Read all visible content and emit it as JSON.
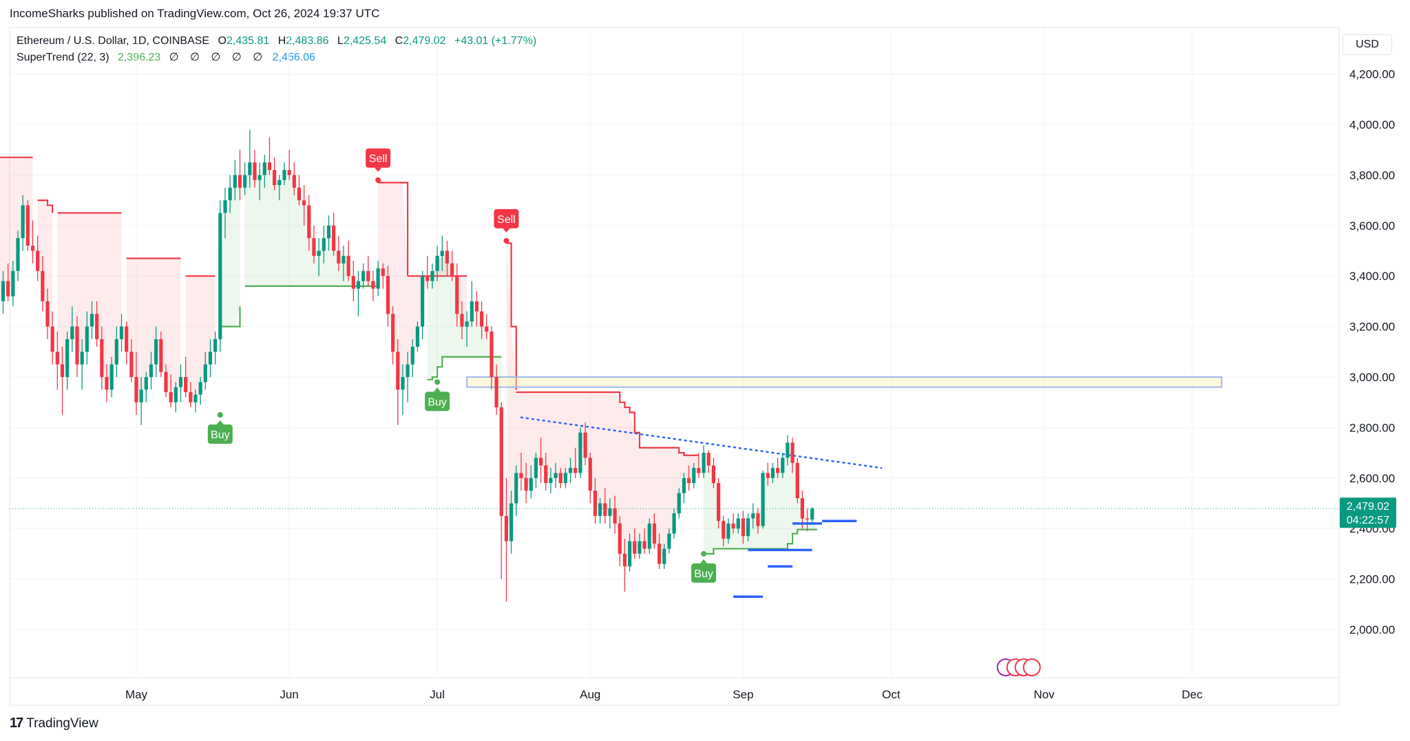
{
  "header": {
    "published": "IncomeSharks published on TradingView.com, Oct 26, 2024 19:37 UTC"
  },
  "legend": {
    "symbol": "Ethereum / U.S. Dollar, 1D, COINBASE",
    "o_label": "O",
    "o": "2,435.81",
    "h_label": "H",
    "h": "2,483.86",
    "l_label": "L",
    "l": "2,425.54",
    "c_label": "C",
    "c": "2,479.02",
    "change": "+43.01 (+1.77%)",
    "indicator": "SuperTrend (22, 3)",
    "indicator_v1": "2,396.23",
    "indicator_zeros": "∅ ∅ ∅ ∅ ∅",
    "indicator_v2": "2,456.06"
  },
  "currency": "USD",
  "price_label": {
    "price": "2,479.02",
    "countdown": "04:22:57"
  },
  "footer": {
    "brand": "TradingView"
  },
  "colors": {
    "bull": "#089981",
    "bear": "#f23645",
    "st_up": "#4caf50",
    "st_down": "#f23645",
    "hline": "#2962ff"
  },
  "chart_data": {
    "type": "candlestick",
    "ylim": [
      1900,
      4300
    ],
    "y_ticks": [
      2000,
      2200,
      2400,
      2600,
      2800,
      3000,
      3200,
      3400,
      3600,
      3800,
      4000,
      4200
    ],
    "y_tick_labels": [
      "2,000.00",
      "2,200.00",
      "2,400.00",
      "2,600.00",
      "2,800.00",
      "3,000.00",
      "3,200.00",
      "3,400.00",
      "3,600.00",
      "3,800.00",
      "4,000.00",
      "4,200.00"
    ],
    "x_ticks": [
      {
        "label": "May",
        "date": "2024-05-01"
      },
      {
        "label": "Jun",
        "date": "2024-06-01"
      },
      {
        "label": "Jul",
        "date": "2024-07-01"
      },
      {
        "label": "Aug",
        "date": "2024-08-01"
      },
      {
        "label": "Sep",
        "date": "2024-09-01"
      },
      {
        "label": "Oct",
        "date": "2024-10-01"
      },
      {
        "label": "Nov",
        "date": "2024-11-01"
      },
      {
        "label": "Dec",
        "date": "2024-12-01"
      }
    ],
    "start_date": "2024-04-02",
    "ohlc": [
      [
        3200,
        3340,
        3150,
        3250
      ],
      [
        3250,
        3400,
        3200,
        3300
      ],
      [
        3300,
        3420,
        3250,
        3380
      ],
      [
        3380,
        3450,
        3300,
        3320
      ],
      [
        3320,
        3460,
        3280,
        3420
      ],
      [
        3420,
        3580,
        3380,
        3550
      ],
      [
        3550,
        3720,
        3500,
        3680
      ],
      [
        3680,
        3700,
        3500,
        3520
      ],
      [
        3520,
        3620,
        3450,
        3500
      ],
      [
        3500,
        3560,
        3380,
        3420
      ],
      [
        3420,
        3480,
        3260,
        3300
      ],
      [
        3300,
        3350,
        3150,
        3200
      ],
      [
        3200,
        3260,
        3050,
        3100
      ],
      [
        3100,
        3180,
        2950,
        3050
      ],
      [
        3050,
        3120,
        2850,
        3000
      ],
      [
        3000,
        3180,
        2950,
        3150
      ],
      [
        3150,
        3280,
        3100,
        3200
      ],
      [
        3200,
        3240,
        3000,
        3050
      ],
      [
        3050,
        3150,
        2950,
        3100
      ],
      [
        3100,
        3260,
        3050,
        3200
      ],
      [
        3200,
        3300,
        3150,
        3250
      ],
      [
        3250,
        3300,
        3120,
        3150
      ],
      [
        3150,
        3200,
        2950,
        3000
      ],
      [
        3000,
        3050,
        2900,
        2950
      ],
      [
        2950,
        3080,
        2920,
        3050
      ],
      [
        3050,
        3200,
        3000,
        3150
      ],
      [
        3150,
        3250,
        3100,
        3200
      ],
      [
        3200,
        3220,
        3050,
        3100
      ],
      [
        3100,
        3150,
        2980,
        3000
      ],
      [
        3000,
        3100,
        2850,
        2900
      ],
      [
        2900,
        3000,
        2810,
        2950
      ],
      [
        2950,
        3020,
        2900,
        3000
      ],
      [
        3000,
        3100,
        2950,
        3050
      ],
      [
        3050,
        3200,
        3000,
        3150
      ],
      [
        3150,
        3180,
        3000,
        3020
      ],
      [
        3020,
        3050,
        2920,
        2940
      ],
      [
        2940,
        3010,
        2880,
        2900
      ],
      [
        2900,
        2980,
        2860,
        2960
      ],
      [
        2960,
        3050,
        2900,
        3000
      ],
      [
        3000,
        3080,
        2920,
        2940
      ],
      [
        2940,
        2980,
        2880,
        2900
      ],
      [
        2900,
        2950,
        2860,
        2930
      ],
      [
        2930,
        3000,
        2890,
        2980
      ],
      [
        2980,
        3100,
        2950,
        3050
      ],
      [
        3050,
        3150,
        3000,
        3100
      ],
      [
        3100,
        3180,
        3050,
        3150
      ],
      [
        3150,
        3700,
        3100,
        3650
      ],
      [
        3650,
        3750,
        3550,
        3700
      ],
      [
        3700,
        3800,
        3650,
        3750
      ],
      [
        3750,
        3860,
        3700,
        3800
      ],
      [
        3800,
        3900,
        3700,
        3750
      ],
      [
        3750,
        3850,
        3720,
        3800
      ],
      [
        3800,
        3980,
        3750,
        3850
      ],
      [
        3850,
        3900,
        3750,
        3780
      ],
      [
        3780,
        3850,
        3700,
        3800
      ],
      [
        3800,
        3880,
        3750,
        3850
      ],
      [
        3850,
        3950,
        3800,
        3820
      ],
      [
        3820,
        3870,
        3740,
        3760
      ],
      [
        3760,
        3800,
        3700,
        3780
      ],
      [
        3780,
        3850,
        3760,
        3820
      ],
      [
        3820,
        3900,
        3780,
        3800
      ],
      [
        3800,
        3850,
        3720,
        3750
      ],
      [
        3750,
        3800,
        3680,
        3700
      ],
      [
        3700,
        3760,
        3600,
        3680
      ],
      [
        3680,
        3720,
        3500,
        3550
      ],
      [
        3550,
        3600,
        3450,
        3480
      ],
      [
        3480,
        3550,
        3400,
        3500
      ],
      [
        3500,
        3600,
        3450,
        3550
      ],
      [
        3550,
        3640,
        3500,
        3600
      ],
      [
        3600,
        3650,
        3480,
        3500
      ],
      [
        3500,
        3560,
        3420,
        3450
      ],
      [
        3450,
        3520,
        3380,
        3480
      ],
      [
        3480,
        3540,
        3380,
        3400
      ],
      [
        3400,
        3460,
        3300,
        3350
      ],
      [
        3350,
        3420,
        3240,
        3380
      ],
      [
        3380,
        3450,
        3350,
        3420
      ],
      [
        3420,
        3480,
        3360,
        3380
      ],
      [
        3380,
        3420,
        3300,
        3350
      ],
      [
        3350,
        3460,
        3320,
        3430
      ],
      [
        3430,
        3450,
        3350,
        3400
      ],
      [
        3400,
        3440,
        3200,
        3250
      ],
      [
        3250,
        3280,
        3050,
        3100
      ],
      [
        3100,
        3150,
        2810,
        2950
      ],
      [
        2950,
        3050,
        2850,
        3000
      ],
      [
        3000,
        3100,
        2900,
        3050
      ],
      [
        3050,
        3150,
        3000,
        3120
      ],
      [
        3120,
        3220,
        3100,
        3200
      ],
      [
        3200,
        3420,
        3150,
        3400
      ],
      [
        3400,
        3480,
        3350,
        3380
      ],
      [
        3380,
        3450,
        3350,
        3420
      ],
      [
        3420,
        3520,
        3380,
        3480
      ],
      [
        3480,
        3560,
        3420,
        3500
      ],
      [
        3500,
        3540,
        3400,
        3450
      ],
      [
        3450,
        3500,
        3380,
        3400
      ],
      [
        3400,
        3450,
        3200,
        3250
      ],
      [
        3250,
        3300,
        3150,
        3200
      ],
      [
        3200,
        3260,
        3120,
        3220
      ],
      [
        3220,
        3380,
        3200,
        3300
      ],
      [
        3300,
        3340,
        3200,
        3260
      ],
      [
        3260,
        3300,
        3150,
        3200
      ],
      [
        3200,
        3250,
        3150,
        3180
      ],
      [
        3180,
        3200,
        2950,
        3000
      ],
      [
        3000,
        3050,
        2850,
        2880
      ],
      [
        2880,
        2900,
        2200,
        2450
      ],
      [
        2450,
        2600,
        2110,
        2350
      ],
      [
        2350,
        2550,
        2300,
        2500
      ],
      [
        2500,
        2650,
        2450,
        2620
      ],
      [
        2620,
        2700,
        2550,
        2600
      ],
      [
        2600,
        2660,
        2500,
        2550
      ],
      [
        2550,
        2650,
        2520,
        2600
      ],
      [
        2600,
        2700,
        2560,
        2680
      ],
      [
        2680,
        2760,
        2580,
        2650
      ],
      [
        2650,
        2700,
        2550,
        2580
      ],
      [
        2580,
        2640,
        2540,
        2600
      ],
      [
        2600,
        2660,
        2560,
        2620
      ],
      [
        2620,
        2640,
        2560,
        2580
      ],
      [
        2580,
        2640,
        2560,
        2620
      ],
      [
        2620,
        2680,
        2580,
        2640
      ],
      [
        2640,
        2720,
        2600,
        2620
      ],
      [
        2620,
        2800,
        2600,
        2780
      ],
      [
        2780,
        2820,
        2650,
        2680
      ],
      [
        2680,
        2700,
        2500,
        2550
      ],
      [
        2550,
        2600,
        2420,
        2450
      ],
      [
        2450,
        2520,
        2420,
        2500
      ],
      [
        2500,
        2560,
        2420,
        2450
      ],
      [
        2450,
        2520,
        2400,
        2480
      ],
      [
        2480,
        2530,
        2380,
        2420
      ],
      [
        2420,
        2450,
        2250,
        2300
      ],
      [
        2300,
        2360,
        2150,
        2250
      ],
      [
        2250,
        2380,
        2230,
        2350
      ],
      [
        2350,
        2400,
        2280,
        2300
      ],
      [
        2300,
        2380,
        2280,
        2350
      ],
      [
        2350,
        2400,
        2300,
        2320
      ],
      [
        2320,
        2440,
        2300,
        2420
      ],
      [
        2420,
        2460,
        2320,
        2340
      ],
      [
        2340,
        2380,
        2240,
        2260
      ],
      [
        2260,
        2340,
        2240,
        2320
      ],
      [
        2320,
        2400,
        2300,
        2380
      ],
      [
        2380,
        2480,
        2360,
        2460
      ],
      [
        2460,
        2560,
        2440,
        2540
      ],
      [
        2540,
        2620,
        2500,
        2600
      ],
      [
        2600,
        2650,
        2550,
        2580
      ],
      [
        2580,
        2660,
        2560,
        2640
      ],
      [
        2640,
        2700,
        2600,
        2620
      ],
      [
        2620,
        2730,
        2600,
        2700
      ],
      [
        2700,
        2710,
        2620,
        2650
      ],
      [
        2650,
        2680,
        2560,
        2580
      ],
      [
        2580,
        2600,
        2400,
        2430
      ],
      [
        2430,
        2450,
        2330,
        2360
      ],
      [
        2360,
        2440,
        2340,
        2420
      ],
      [
        2420,
        2460,
        2380,
        2400
      ],
      [
        2400,
        2460,
        2380,
        2440
      ],
      [
        2440,
        2470,
        2340,
        2370
      ],
      [
        2370,
        2460,
        2350,
        2440
      ],
      [
        2440,
        2500,
        2400,
        2460
      ],
      [
        2460,
        2480,
        2380,
        2410
      ],
      [
        2410,
        2630,
        2400,
        2620
      ],
      [
        2620,
        2660,
        2570,
        2600
      ],
      [
        2600,
        2660,
        2580,
        2640
      ],
      [
        2640,
        2680,
        2600,
        2620
      ],
      [
        2620,
        2700,
        2600,
        2680
      ],
      [
        2680,
        2770,
        2650,
        2740
      ],
      [
        2740,
        2760,
        2620,
        2660
      ],
      [
        2660,
        2680,
        2500,
        2520
      ],
      [
        2520,
        2550,
        2400,
        2440
      ],
      [
        2440,
        2480,
        2390,
        2436
      ],
      [
        2435.81,
        2483.86,
        2425.54,
        2479.02
      ]
    ],
    "supertrend": [
      {
        "from": 0,
        "to": 8,
        "dir": "down",
        "values": [
          3870,
          3870,
          3870,
          3870,
          3870,
          3870,
          3870,
          3870,
          3870
        ]
      },
      {
        "from": 9,
        "to": 12,
        "dir": "down",
        "values": [
          3700,
          3700,
          3680,
          3650
        ]
      },
      {
        "from": 13,
        "to": 26,
        "dir": "down",
        "values": [
          3650,
          3650,
          3650,
          3650,
          3650,
          3650,
          3650,
          3650,
          3650,
          3650,
          3650,
          3650,
          3650,
          3650
        ]
      },
      {
        "from": 27,
        "to": 38,
        "dir": "down",
        "values": [
          3470,
          3470,
          3470,
          3470,
          3470,
          3470,
          3470,
          3470,
          3470,
          3470,
          3470,
          3470
        ]
      },
      {
        "from": 39,
        "to": 45,
        "dir": "down",
        "values": [
          3400,
          3400,
          3400,
          3400,
          3400,
          3400,
          3400
        ]
      },
      {
        "from": 46,
        "to": 50,
        "dir": "up",
        "values": [
          3200,
          3200,
          3200,
          3200,
          3280
        ]
      },
      {
        "from": 51,
        "to": 78,
        "dir": "up",
        "values": [
          3360,
          3360,
          3360,
          3360,
          3360,
          3360,
          3360,
          3360,
          3360,
          3360,
          3360,
          3360,
          3360,
          3360,
          3360,
          3360,
          3360,
          3360,
          3360,
          3360,
          3360,
          3360,
          3360,
          3360,
          3360,
          3360,
          3360,
          3360
        ]
      },
      {
        "from": 78,
        "to": 84,
        "dir": "down",
        "values": [
          3770,
          3770,
          3770,
          3770,
          3770,
          3770,
          3400
        ]
      },
      {
        "from": 84,
        "to": 96,
        "dir": "down",
        "values": [
          3400,
          3400,
          3400,
          3400,
          3400,
          3400,
          3400,
          3400,
          3400,
          3400,
          3400,
          3400,
          3400
        ]
      },
      {
        "from": 88,
        "to": 103,
        "dir": "up",
        "values": [
          2990,
          3000,
          3040,
          3080,
          3080,
          3080,
          3080,
          3080,
          3080,
          3080,
          3080,
          3080,
          3080,
          3080,
          3080,
          3080
        ]
      },
      {
        "from": 104,
        "to": 106,
        "dir": "down",
        "values": [
          3530,
          3200,
          2950
        ]
      },
      {
        "from": 106,
        "to": 143,
        "dir": "down",
        "values": [
          2940,
          2940,
          2940,
          2940,
          2940,
          2940,
          2940,
          2940,
          2940,
          2940,
          2940,
          2940,
          2940,
          2940,
          2940,
          2940,
          2940,
          2940,
          2940,
          2940,
          2940,
          2900,
          2880,
          2860,
          2780,
          2720,
          2720,
          2720,
          2720,
          2720,
          2720,
          2720,
          2720,
          2700,
          2690,
          2690,
          2690,
          2690
        ]
      },
      {
        "from": 144,
        "to": 167,
        "dir": "up",
        "values": [
          2300,
          2300,
          2320,
          2320,
          2320,
          2320,
          2320,
          2320,
          2320,
          2320,
          2320,
          2320,
          2320,
          2320,
          2320,
          2320,
          2320,
          2340,
          2380,
          2396,
          2396,
          2396,
          2396,
          2396
        ]
      }
    ],
    "signals": [
      {
        "label": "Buy",
        "index": 46,
        "price": 2850,
        "dir": "up"
      },
      {
        "label": "Sell",
        "index": 78,
        "price": 3780,
        "dir": "down"
      },
      {
        "label": "Buy",
        "index": 90,
        "price": 2980,
        "dir": "up"
      },
      {
        "label": "Sell",
        "index": 104,
        "price": 3540,
        "dir": "down"
      },
      {
        "label": "Buy",
        "index": 144,
        "price": 2300,
        "dir": "up"
      }
    ],
    "zone": {
      "x_from": "2024-07-07",
      "x_to": "2024-12-07",
      "y_from": 2960,
      "y_to": 3000
    },
    "trendline": {
      "from": {
        "index": 107,
        "price": 2840
      },
      "to": {
        "index": 180,
        "price": 2640
      }
    },
    "support_segments": [
      {
        "from": 150,
        "to": 156,
        "price": 2130
      },
      {
        "from": 157,
        "to": 162,
        "price": 2250
      },
      {
        "from": 153,
        "to": 166,
        "price": 2315
      },
      {
        "from": 162,
        "to": 168,
        "price": 2420
      },
      {
        "from": 168,
        "to": 175,
        "price": 2430
      }
    ],
    "current_price": 2479.02
  }
}
